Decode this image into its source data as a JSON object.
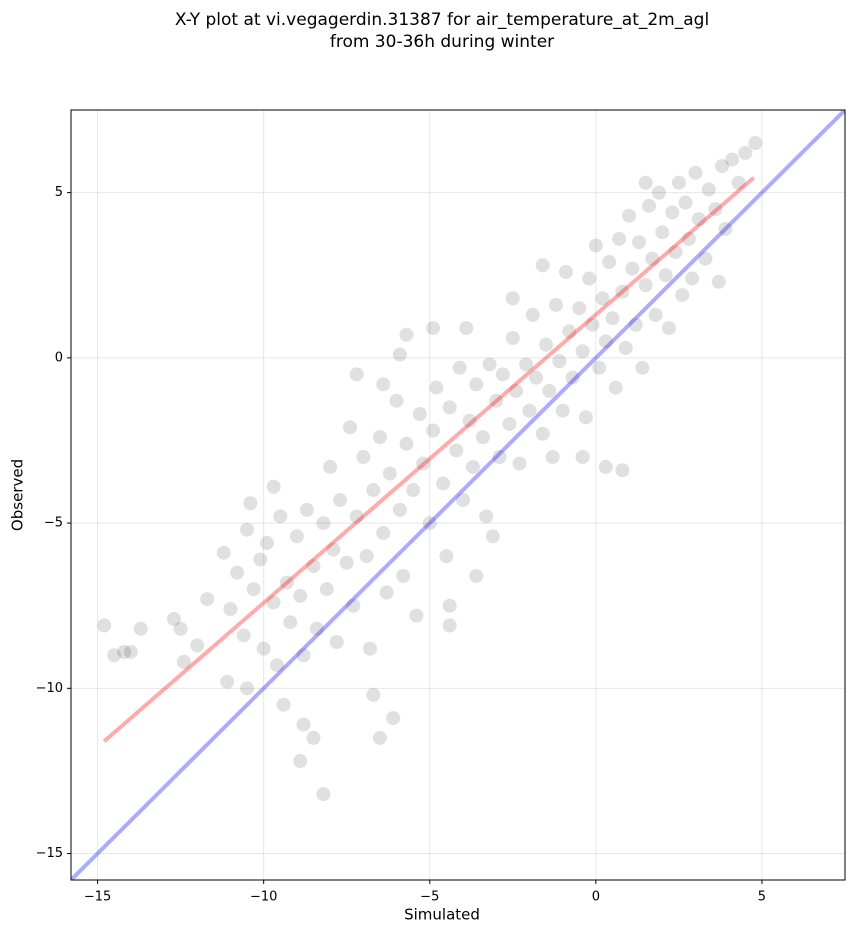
{
  "chart_data": {
    "type": "scatter",
    "title": [
      "X-Y plot at vi.vegagerdin.31387 for air_temperature_at_2m_agl",
      "from 30-36h during winter"
    ],
    "x_label": "Simulated",
    "y_label": "Observed",
    "xlim": [
      -15.8,
      7.5
    ],
    "ylim": [
      -15.8,
      7.5
    ],
    "xticks": [
      {
        "value": -15,
        "label": "−15"
      },
      {
        "value": -10,
        "label": "−10"
      },
      {
        "value": -5,
        "label": "−5"
      },
      {
        "value": 0,
        "label": "0"
      },
      {
        "value": 5,
        "label": "5"
      }
    ],
    "yticks": [
      {
        "value": -15,
        "label": "−15"
      },
      {
        "value": -10,
        "label": "−10"
      },
      {
        "value": -5,
        "label": "−5"
      },
      {
        "value": 0,
        "label": "0"
      },
      {
        "value": 5,
        "label": "5"
      }
    ],
    "grid": true,
    "series": [
      {
        "type": "scatter",
        "color": "#000000",
        "x": [
          -14.8,
          -14.5,
          -14.2,
          -14.0,
          -13.7,
          -12.7,
          -12.5,
          -12.4,
          -12.0,
          -8.2,
          -8.9,
          -8.8,
          -8.5,
          -6.5,
          -6.7,
          -6.1,
          -9.4,
          -10.5,
          -11.1,
          -1.6,
          -2.5,
          0.3,
          0.8,
          -0.4,
          -1.3,
          -3.6,
          -4.4,
          -4.4,
          -3.1,
          -4.9,
          -3.9,
          -5.7,
          -5.9,
          -7.2,
          -6.4,
          -9.7,
          -10.4,
          -11.7,
          -11.2,
          -11.0,
          -10.8,
          -10.6,
          -10.5,
          -10.3,
          -10.1,
          -10.0,
          -9.9,
          -9.7,
          -9.6,
          -9.5,
          -9.3,
          -9.2,
          -9.0,
          -8.9,
          -8.8,
          -8.7,
          -8.5,
          -8.4,
          -8.2,
          -8.1,
          -8.0,
          -7.9,
          -7.8,
          -7.7,
          -7.5,
          -7.4,
          -7.3,
          -7.2,
          -7.0,
          -6.9,
          -6.8,
          -6.7,
          -6.5,
          -6.4,
          -6.3,
          -6.2,
          -6.0,
          -5.9,
          -5.8,
          -5.7,
          -5.5,
          -5.4,
          -5.3,
          -5.2,
          -5.0,
          -4.9,
          -4.8,
          -4.6,
          -4.5,
          -4.4,
          -4.2,
          -4.1,
          -4.0,
          -3.8,
          -3.7,
          -3.6,
          -3.4,
          -3.3,
          -3.2,
          -3.0,
          -2.9,
          -2.8,
          -2.6,
          -2.5,
          -2.4,
          -2.3,
          -2.1,
          -2.0,
          -1.9,
          -1.8,
          -1.6,
          -1.5,
          -1.4,
          -1.2,
          -1.1,
          -1.0,
          -0.9,
          -0.8,
          -0.7,
          -0.5,
          -0.4,
          -0.3,
          -0.2,
          -0.1,
          0.0,
          0.1,
          0.2,
          0.3,
          0.4,
          0.5,
          0.6,
          0.7,
          0.8,
          0.9,
          1.0,
          1.1,
          1.2,
          1.3,
          1.4,
          1.5,
          1.6,
          1.7,
          1.8,
          1.9,
          2.0,
          2.1,
          2.2,
          2.3,
          2.4,
          2.5,
          2.6,
          2.7,
          2.8,
          2.9,
          3.0,
          3.1,
          3.3,
          3.4,
          3.6,
          3.8,
          3.9,
          4.1,
          4.3,
          4.5,
          4.8,
          3.7,
          1.5
        ],
        "values": [
          -8.1,
          -9.0,
          -8.9,
          -8.9,
          -8.2,
          -7.9,
          -8.2,
          -9.2,
          -8.7,
          -13.2,
          -12.2,
          -11.1,
          -11.5,
          -11.5,
          -10.2,
          -10.9,
          -10.5,
          -10.0,
          -9.8,
          2.8,
          1.8,
          -3.3,
          -3.4,
          -3.0,
          -3.0,
          -6.6,
          -8.1,
          -7.5,
          -5.4,
          0.9,
          0.9,
          0.7,
          0.1,
          -0.5,
          -0.8,
          -3.9,
          -4.4,
          -7.3,
          -5.9,
          -7.6,
          -6.5,
          -8.4,
          -5.2,
          -7.0,
          -6.1,
          -8.8,
          -5.6,
          -7.4,
          -9.3,
          -4.8,
          -6.8,
          -8.0,
          -5.4,
          -7.2,
          -9.0,
          -4.6,
          -6.3,
          -8.2,
          -5.0,
          -7.0,
          -3.3,
          -5.8,
          -8.6,
          -4.3,
          -6.2,
          -2.1,
          -7.5,
          -4.8,
          -3.0,
          -6.0,
          -8.8,
          -4.0,
          -2.4,
          -5.3,
          -7.1,
          -3.5,
          -1.3,
          -4.6,
          -6.6,
          -2.6,
          -4.0,
          -7.8,
          -1.7,
          -3.2,
          -5.0,
          -2.2,
          -0.9,
          -3.8,
          -6.0,
          -1.5,
          -2.8,
          -0.3,
          -4.3,
          -1.9,
          -3.3,
          -0.8,
          -2.4,
          -4.8,
          -0.2,
          -1.3,
          -3.0,
          -0.5,
          -2.0,
          0.6,
          -1.0,
          -3.2,
          -0.2,
          -1.6,
          1.3,
          -0.6,
          -2.3,
          0.4,
          -1.0,
          1.6,
          -0.1,
          -1.6,
          2.6,
          0.8,
          -0.6,
          1.5,
          0.2,
          -1.8,
          2.4,
          1.0,
          3.4,
          -0.3,
          1.8,
          0.5,
          2.9,
          1.2,
          -0.9,
          3.6,
          2.0,
          0.3,
          4.3,
          2.7,
          1.0,
          3.5,
          -0.3,
          2.2,
          4.6,
          3.0,
          1.3,
          5.0,
          3.8,
          2.5,
          0.9,
          4.4,
          3.2,
          5.3,
          1.9,
          4.7,
          3.6,
          2.4,
          5.6,
          4.2,
          3.0,
          5.1,
          4.5,
          5.8,
          3.9,
          6.0,
          5.3,
          6.2,
          6.5,
          2.3,
          5.3
        ]
      },
      {
        "type": "line",
        "color": "#ff0000",
        "x": [
          -14.8,
          4.75
        ],
        "values": [
          -11.6,
          5.45
        ]
      },
      {
        "type": "line",
        "color": "#0000ff",
        "x": [
          -15.8,
          7.5
        ],
        "values": [
          -15.8,
          7.5
        ]
      }
    ]
  }
}
